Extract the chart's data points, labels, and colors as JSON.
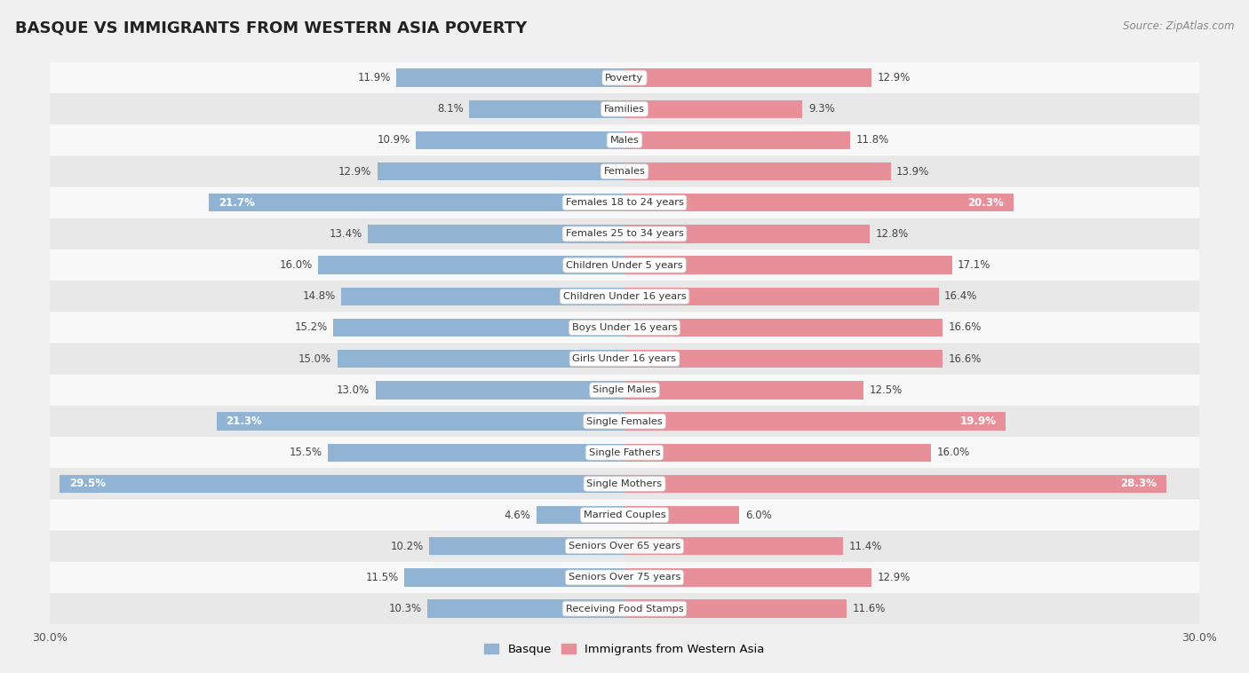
{
  "title": "BASQUE VS IMMIGRANTS FROM WESTERN ASIA POVERTY",
  "source": "Source: ZipAtlas.com",
  "categories": [
    "Poverty",
    "Families",
    "Males",
    "Females",
    "Females 18 to 24 years",
    "Females 25 to 34 years",
    "Children Under 5 years",
    "Children Under 16 years",
    "Boys Under 16 years",
    "Girls Under 16 years",
    "Single Males",
    "Single Females",
    "Single Fathers",
    "Single Mothers",
    "Married Couples",
    "Seniors Over 65 years",
    "Seniors Over 75 years",
    "Receiving Food Stamps"
  ],
  "basque_values": [
    11.9,
    8.1,
    10.9,
    12.9,
    21.7,
    13.4,
    16.0,
    14.8,
    15.2,
    15.0,
    13.0,
    21.3,
    15.5,
    29.5,
    4.6,
    10.2,
    11.5,
    10.3
  ],
  "immigrants_values": [
    12.9,
    9.3,
    11.8,
    13.9,
    20.3,
    12.8,
    17.1,
    16.4,
    16.6,
    16.6,
    12.5,
    19.9,
    16.0,
    28.3,
    6.0,
    11.4,
    12.9,
    11.6
  ],
  "basque_color": "#91b4d5",
  "immigrants_color": "#e8909a",
  "highlight_rows": [
    4,
    11,
    13
  ],
  "axis_max": 30.0,
  "background_color": "#f0f0f0",
  "row_bg_even": "#f8f8f8",
  "row_bg_odd": "#e8e8e8",
  "legend_basque": "Basque",
  "legend_immigrants": "Immigrants from Western Asia",
  "title_fontsize": 13,
  "label_fontsize": 8.5,
  "cat_fontsize": 8.2
}
